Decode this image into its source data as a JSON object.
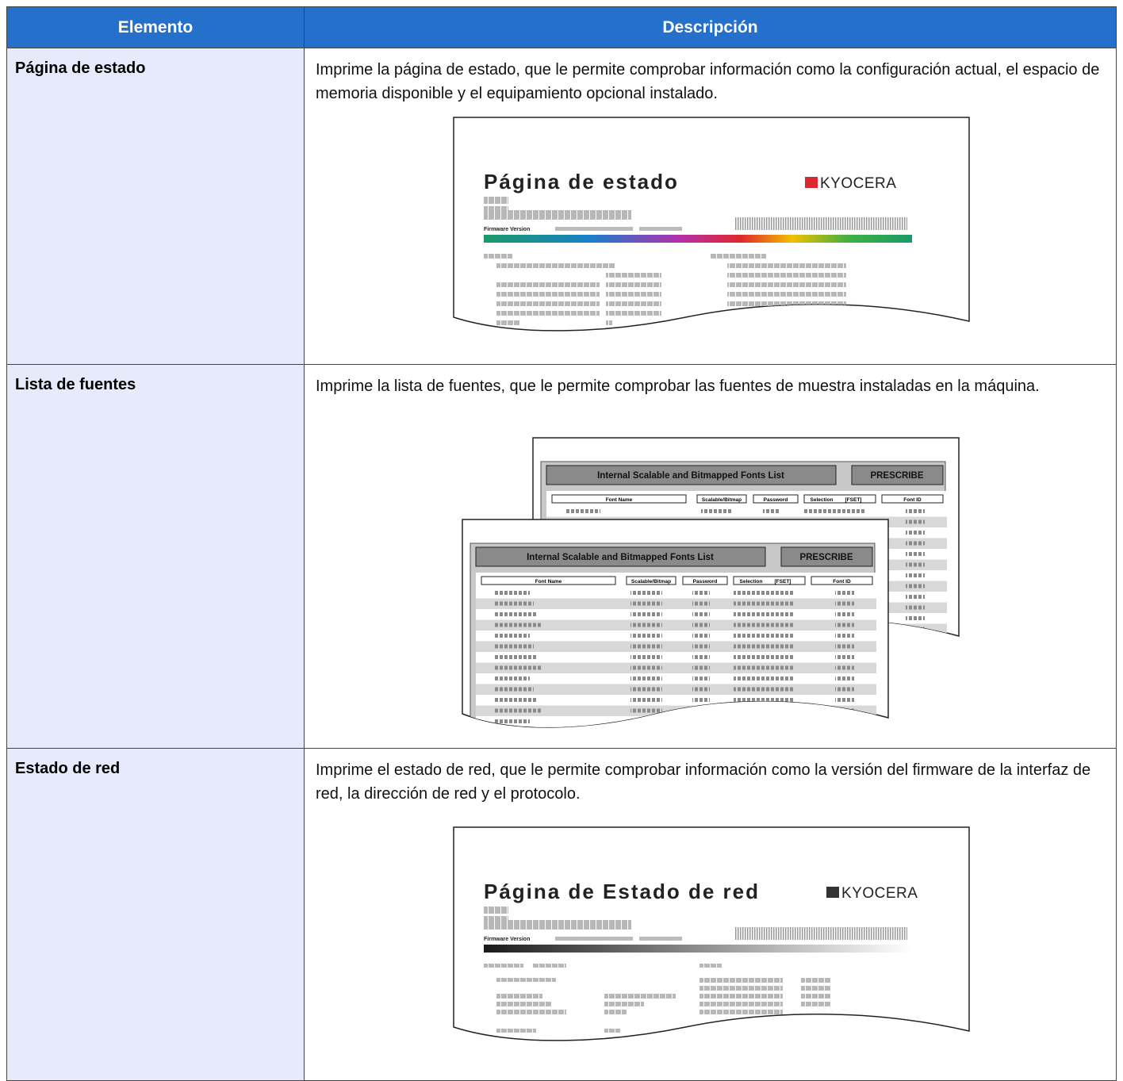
{
  "table": {
    "headers": [
      "Elemento",
      "Descripción"
    ],
    "rows": [
      {
        "item": "Página de estado",
        "description": "Imprime la página de estado, que le permite comprobar información como la configuración actual, el espacio de memoria disponible y el equipamiento opcional instalado.",
        "illustration": {
          "title": "Página de estado",
          "logo": "KYOCERA",
          "firmware_label": "Firmware Version"
        }
      },
      {
        "item": "Lista de fuentes",
        "description": "Imprime la lista de fuentes, que le permite comprobar las fuentes de muestra instaladas en la máquina.",
        "illustration": {
          "title": "Internal Scalable and Bitmapped Fonts List",
          "button": "PRESCRIBE",
          "columns": [
            "Font Name",
            "Scalable/Bitmap",
            "Password",
            "Selection",
            "[FSET]",
            "Font ID"
          ]
        }
      },
      {
        "item": "Estado de red",
        "description": "Imprime el estado de red, que le permite comprobar información como la versión del firmware de la interfaz de red, la dirección de red y el protocolo.",
        "illustration": {
          "title": "Página de Estado de red",
          "logo": "KYOCERA",
          "firmware_label": "Firmware Version"
        }
      }
    ]
  }
}
